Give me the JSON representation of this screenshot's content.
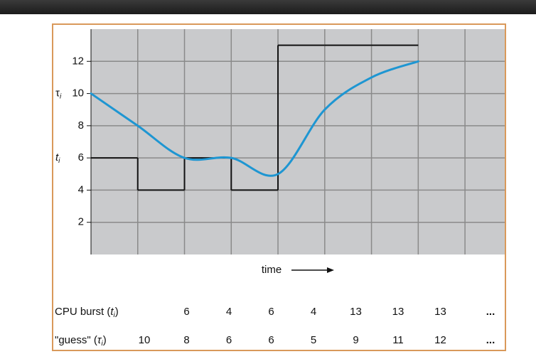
{
  "chart_data": {
    "type": "line",
    "ylim": [
      0,
      14
    ],
    "yticks": [
      2,
      4,
      6,
      8,
      10,
      12
    ],
    "xlim": [
      0,
      8.85
    ],
    "grid": true,
    "x_label": "time",
    "y_annotations": [
      {
        "text": "τ",
        "sub": "i",
        "at": 10
      },
      {
        "text": "t",
        "sub": "i",
        "at": 6
      }
    ],
    "series": [
      {
        "name": "CPU burst (",
        "var": "t",
        "sub": "i",
        "close": ")",
        "style": "step",
        "color": "#111111",
        "values": [
          6,
          4,
          6,
          4,
          13,
          13,
          13
        ]
      },
      {
        "name": "\"guess\" (",
        "var": "τ",
        "sub": "i",
        "close": ")",
        "style": "smooth",
        "color": "#1e96d2",
        "values": [
          10,
          8,
          6,
          6,
          5,
          9,
          11,
          12
        ]
      }
    ],
    "ellipsis": "..."
  }
}
